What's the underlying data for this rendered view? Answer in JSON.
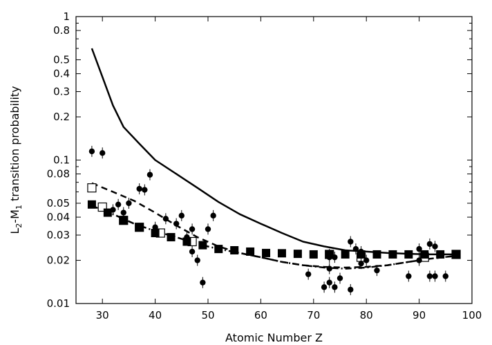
{
  "chart_data": {
    "type": "scatter",
    "title": "",
    "xlabel": "Atomic Number Z",
    "ylabel_parts": {
      "l": "L",
      "sub_l": "2",
      "dash": "-M",
      "sub_m": "1",
      "rest": " transition probability"
    },
    "xlim": [
      25,
      100
    ],
    "ylim": [
      0.01,
      1
    ],
    "yscale": "log",
    "grid": false,
    "legend": "none",
    "x_ticks": [
      {
        "v": 30,
        "label": "30"
      },
      {
        "v": 40,
        "label": "40"
      },
      {
        "v": 50,
        "label": "50"
      },
      {
        "v": 60,
        "label": "60"
      },
      {
        "v": 70,
        "label": "70"
      },
      {
        "v": 80,
        "label": "80"
      },
      {
        "v": 90,
        "label": "90"
      },
      {
        "v": 100,
        "label": "100"
      }
    ],
    "y_ticks": [
      {
        "v": 0.01,
        "label": "0.01"
      },
      {
        "v": 0.02,
        "label": "0.02"
      },
      {
        "v": 0.03,
        "label": "0.03"
      },
      {
        "v": 0.04,
        "label": "0.04"
      },
      {
        "v": 0.05,
        "label": "0.05"
      },
      {
        "v": 0.08,
        "label": "0.08"
      },
      {
        "v": 0.1,
        "label": "0.1"
      },
      {
        "v": 0.2,
        "label": "0.2"
      },
      {
        "v": 0.3,
        "label": "0.3"
      },
      {
        "v": 0.4,
        "label": "0.4"
      },
      {
        "v": 0.5,
        "label": "0.5"
      },
      {
        "v": 0.8,
        "label": "0.8"
      },
      {
        "v": 1,
        "label": "1"
      }
    ],
    "y_minor_ticks": [
      0.06,
      0.07,
      0.09,
      0.6,
      0.7,
      0.9
    ],
    "colors": {
      "ink": "#000000",
      "open": "#ffffff"
    },
    "series": [
      {
        "style": "solid-line",
        "x": [
          28,
          30,
          32,
          34,
          37,
          40,
          44,
          48,
          52,
          56,
          60,
          64,
          68,
          72,
          76,
          80,
          84,
          88,
          92,
          97
        ],
        "y": [
          0.6,
          0.38,
          0.24,
          0.17,
          0.13,
          0.1,
          0.08,
          0.064,
          0.051,
          0.042,
          0.036,
          0.031,
          0.027,
          0.025,
          0.0235,
          0.023,
          0.0225,
          0.0222,
          0.022,
          0.022
        ]
      },
      {
        "style": "dashed-line",
        "x": [
          28,
          32,
          36,
          40,
          44,
          48,
          52,
          56,
          60,
          64,
          68,
          72,
          76,
          80,
          84,
          88,
          92,
          97
        ],
        "y": [
          0.069,
          0.06,
          0.052,
          0.043,
          0.035,
          0.029,
          0.025,
          0.0225,
          0.021,
          0.0195,
          0.0185,
          0.018,
          0.0178,
          0.018,
          0.0185,
          0.0195,
          0.0205,
          0.0215
        ]
      },
      {
        "style": "dash-dot-line",
        "x": [
          28,
          32,
          36,
          40,
          44,
          48,
          52,
          56,
          60,
          64,
          68,
          72,
          76,
          80,
          84,
          88,
          92,
          97
        ],
        "y": [
          0.048,
          0.042,
          0.036,
          0.032,
          0.029,
          0.026,
          0.024,
          0.0225,
          0.021,
          0.0195,
          0.0185,
          0.0178,
          0.0175,
          0.0178,
          0.0185,
          0.0195,
          0.0205,
          0.0215
        ]
      },
      {
        "style": "filled-squares",
        "x": [
          28,
          31,
          34,
          37,
          40,
          43,
          46,
          49,
          52,
          55,
          58,
          61,
          64,
          67,
          70,
          73,
          76,
          79,
          82,
          85,
          88,
          91,
          94,
          97
        ],
        "y": [
          0.049,
          0.043,
          0.038,
          0.034,
          0.031,
          0.029,
          0.027,
          0.0255,
          0.024,
          0.0235,
          0.023,
          0.0225,
          0.0224,
          0.0222,
          0.022,
          0.022,
          0.022,
          0.022,
          0.022,
          0.022,
          0.022,
          0.022,
          0.022,
          0.022
        ]
      },
      {
        "style": "open-squares",
        "x": [
          28,
          30,
          34,
          37,
          41,
          47,
          73,
          79,
          91,
          97
        ],
        "y": [
          0.064,
          0.047,
          0.038,
          0.034,
          0.031,
          0.027,
          0.022,
          0.021,
          0.021,
          0.022
        ]
      },
      {
        "style": "filled-circles",
        "x": [
          28,
          30,
          32,
          33,
          34,
          35,
          37,
          38,
          39,
          40,
          42,
          44,
          45,
          46,
          47,
          47,
          48,
          49,
          50,
          51,
          69,
          72,
          73,
          73,
          73,
          73,
          74,
          74,
          75,
          77,
          77,
          78,
          79,
          79,
          80,
          82,
          88,
          90,
          90,
          92,
          92,
          93,
          93,
          95
        ],
        "y": [
          0.115,
          0.112,
          0.045,
          0.049,
          0.043,
          0.05,
          0.063,
          0.062,
          0.079,
          0.034,
          0.039,
          0.036,
          0.041,
          0.029,
          0.033,
          0.023,
          0.02,
          0.014,
          0.033,
          0.041,
          0.016,
          0.013,
          0.021,
          0.0175,
          0.014,
          0.022,
          0.013,
          0.021,
          0.015,
          0.027,
          0.0125,
          0.024,
          0.023,
          0.019,
          0.02,
          0.017,
          0.0155,
          0.02,
          0.024,
          0.026,
          0.0155,
          0.025,
          0.0155,
          0.0155
        ]
      }
    ]
  }
}
